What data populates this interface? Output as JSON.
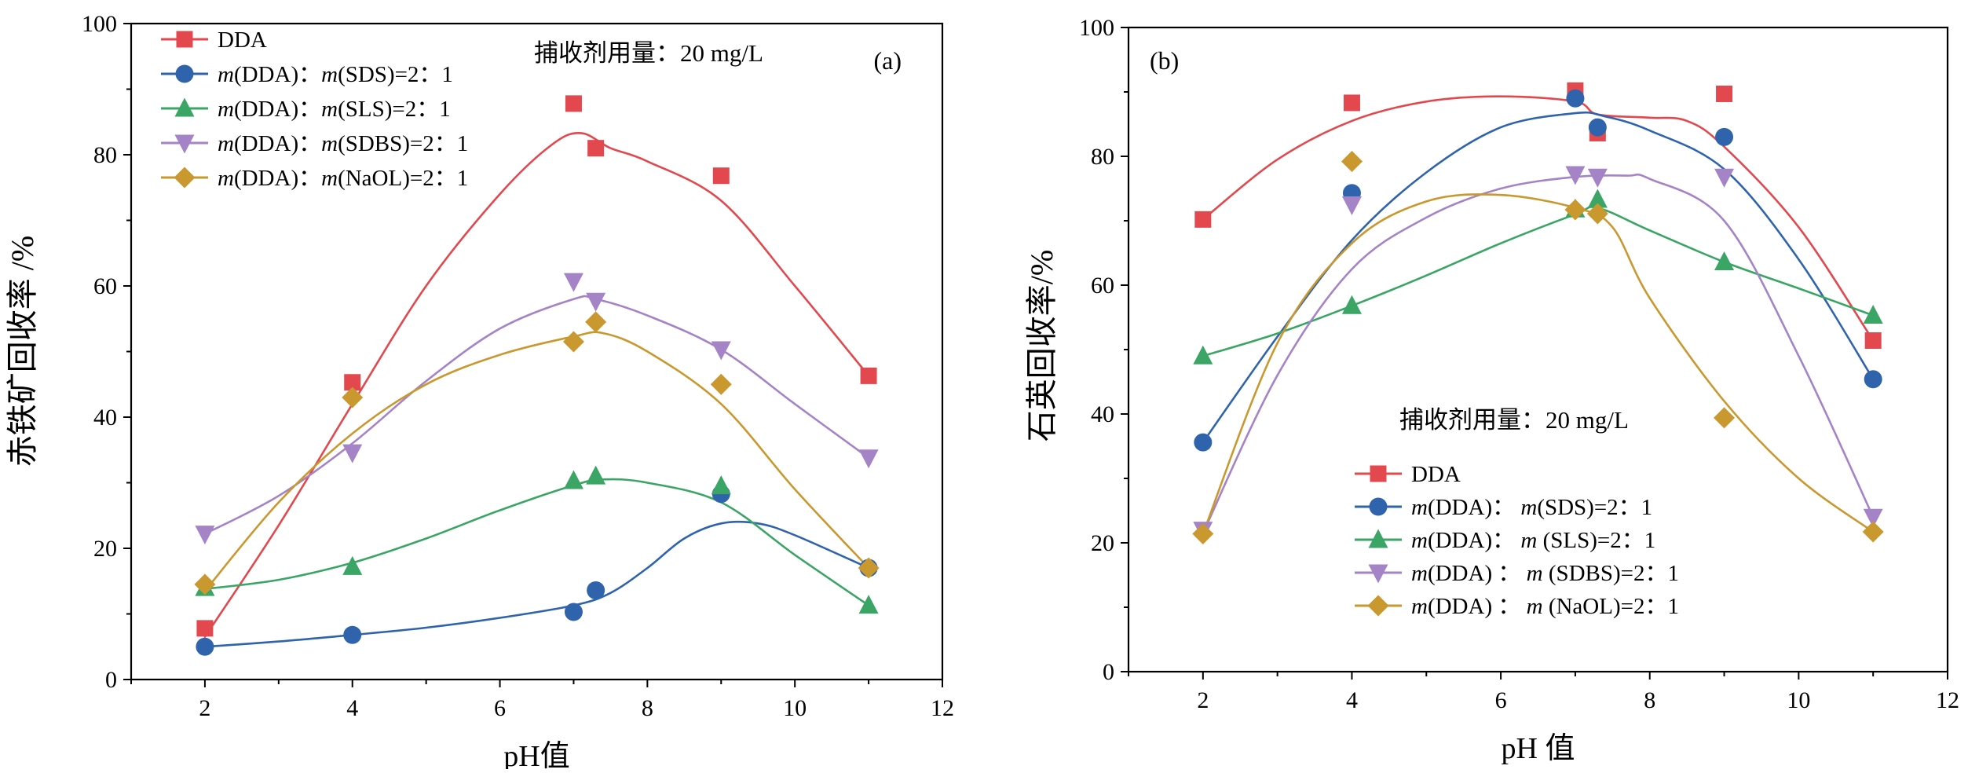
{
  "chart_data": [
    {
      "panel": "(a)",
      "type": "scatter",
      "ylabel": "赤铁矿回收率 /%",
      "xlabel": "pH值",
      "xlim": [
        1,
        12
      ],
      "ylim": [
        0,
        100
      ],
      "xticks": [
        2,
        4,
        6,
        8,
        10,
        12
      ],
      "yticks": [
        0,
        20,
        40,
        60,
        80,
        100
      ],
      "annotation": "捕收剂用量：20 mg/L",
      "legend_position": "top-left",
      "series": [
        {
          "name": "DDA",
          "color": "#e2484e",
          "marker": "square",
          "points": [
            [
              2,
              7.8
            ],
            [
              4,
              45.3
            ],
            [
              7,
              87.8
            ],
            [
              7.3,
              81.0
            ],
            [
              9,
              76.8
            ],
            [
              11,
              46.3
            ]
          ],
          "curve": [
            [
              2,
              6.5
            ],
            [
              3,
              23.5
            ],
            [
              4,
              42.0
            ],
            [
              5,
              60.0
            ],
            [
              6,
              74.0
            ],
            [
              6.7,
              81.5
            ],
            [
              7.1,
              83.3
            ],
            [
              7.5,
              81.0
            ],
            [
              8,
              79.0
            ],
            [
              9,
              73.0
            ],
            [
              10,
              60.0
            ],
            [
              11,
              46.3
            ]
          ]
        },
        {
          "name": "m(DDA)：m(SDS)=2：1",
          "color": "#2f64ad",
          "marker": "circle",
          "points": [
            [
              2,
              5.0
            ],
            [
              4,
              6.8
            ],
            [
              7,
              10.3
            ],
            [
              7.3,
              13.6
            ],
            [
              9,
              28.3
            ],
            [
              11,
              17.0
            ]
          ],
          "curve": [
            [
              2,
              5.0
            ],
            [
              3,
              5.8
            ],
            [
              4,
              6.8
            ],
            [
              5,
              7.9
            ],
            [
              6,
              9.4
            ],
            [
              7,
              11.3
            ],
            [
              7.5,
              13.2
            ],
            [
              8,
              17.0
            ],
            [
              8.5,
              21.5
            ],
            [
              9,
              23.8
            ],
            [
              9.5,
              23.8
            ],
            [
              10,
              22.0
            ],
            [
              11,
              17.0
            ]
          ]
        },
        {
          "name": "m(DDA)：m(SLS)=2：1",
          "color": "#3aa564",
          "marker": "triangle-up",
          "points": [
            [
              2,
              14.0
            ],
            [
              4,
              17.2
            ],
            [
              7,
              30.3
            ],
            [
              7.3,
              31.0
            ],
            [
              9,
              29.5
            ],
            [
              11,
              11.3
            ]
          ],
          "curve": [
            [
              2,
              13.8
            ],
            [
              3,
              15.2
            ],
            [
              4,
              17.8
            ],
            [
              5,
              21.5
            ],
            [
              6,
              25.8
            ],
            [
              7,
              29.6
            ],
            [
              7.4,
              30.5
            ],
            [
              8,
              30.0
            ],
            [
              9,
              27.0
            ],
            [
              10,
              19.0
            ],
            [
              11,
              11.3
            ]
          ]
        },
        {
          "name": "m(DDA)：m(SDBS)=2：1",
          "color": "#a583c7",
          "marker": "triangle-down",
          "points": [
            [
              2,
              22.2
            ],
            [
              4,
              34.6
            ],
            [
              7,
              60.7
            ],
            [
              7.3,
              57.7
            ],
            [
              9,
              50.3
            ],
            [
              11,
              33.8
            ]
          ],
          "curve": [
            [
              2,
              22.2
            ],
            [
              3,
              28.0
            ],
            [
              4,
              36.0
            ],
            [
              5,
              45.5
            ],
            [
              6,
              53.5
            ],
            [
              7,
              58.0
            ],
            [
              7.3,
              58.0
            ],
            [
              8,
              55.5
            ],
            [
              9,
              50.3
            ],
            [
              10,
              42.0
            ],
            [
              11,
              33.8
            ]
          ]
        },
        {
          "name": "m(DDA)：m(NaOL)=2：1",
          "color": "#c9982f",
          "marker": "diamond",
          "points": [
            [
              2,
              14.5
            ],
            [
              4,
              43.0
            ],
            [
              7,
              51.5
            ],
            [
              7.3,
              54.5
            ],
            [
              9,
              45.0
            ],
            [
              11,
              17.0
            ]
          ],
          "curve": [
            [
              2,
              13.5
            ],
            [
              3,
              27.0
            ],
            [
              4,
              37.5
            ],
            [
              5,
              45.0
            ],
            [
              6,
              49.5
            ],
            [
              7,
              52.3
            ],
            [
              7.4,
              52.8
            ],
            [
              8,
              50.0
            ],
            [
              9,
              42.0
            ],
            [
              10,
              29.0
            ],
            [
              11,
              17.0
            ]
          ]
        }
      ]
    },
    {
      "panel": "(b)",
      "type": "scatter",
      "ylabel": "石英回收率/%",
      "xlabel": "pH 值",
      "xlim": [
        1,
        12
      ],
      "ylim": [
        0,
        100
      ],
      "xticks": [
        2,
        4,
        6,
        8,
        10,
        12
      ],
      "yticks": [
        0,
        20,
        40,
        60,
        80,
        100
      ],
      "annotation": "捕收剂用量：20 mg/L",
      "legend_position": "bottom-center",
      "series": [
        {
          "name": "DDA",
          "color": "#e2484e",
          "marker": "square",
          "points": [
            [
              2,
              70.2
            ],
            [
              4,
              88.3
            ],
            [
              7,
              90.2
            ],
            [
              7.3,
              83.6
            ],
            [
              9,
              89.7
            ],
            [
              11,
              51.4
            ]
          ],
          "curve": [
            [
              2,
              70.2
            ],
            [
              3,
              79.5
            ],
            [
              4,
              85.5
            ],
            [
              5,
              88.5
            ],
            [
              6,
              89.3
            ],
            [
              7,
              88.5
            ],
            [
              7.3,
              86.5
            ],
            [
              8,
              86.0
            ],
            [
              8.5,
              85.5
            ],
            [
              9,
              81.5
            ],
            [
              10,
              69.0
            ],
            [
              11,
              51.4
            ]
          ]
        },
        {
          "name": "m(DDA)： m(SDS)=2：1",
          "color": "#2f64ad",
          "marker": "circle",
          "points": [
            [
              2,
              35.6
            ],
            [
              4,
              74.3
            ],
            [
              7,
              89.0
            ],
            [
              7.3,
              84.5
            ],
            [
              9,
              83.0
            ],
            [
              11,
              45.4
            ]
          ],
          "curve": [
            [
              2,
              35.6
            ],
            [
              3,
              52.0
            ],
            [
              4,
              67.0
            ],
            [
              5,
              77.5
            ],
            [
              6,
              84.5
            ],
            [
              7,
              86.7
            ],
            [
              7.4,
              86.2
            ],
            [
              8,
              84.0
            ],
            [
              9,
              78.0
            ],
            [
              10,
              64.0
            ],
            [
              11,
              45.4
            ]
          ]
        },
        {
          "name": "m(DDA)： m (SLS)=2：1",
          "color": "#3aa564",
          "marker": "triangle-up",
          "points": [
            [
              2,
              49.0
            ],
            [
              4,
              56.8
            ],
            [
              7,
              71.8
            ],
            [
              7.3,
              73.3
            ],
            [
              9,
              63.6
            ],
            [
              11,
              55.3
            ]
          ],
          "curve": [
            [
              2,
              49.0
            ],
            [
              3,
              52.5
            ],
            [
              4,
              56.8
            ],
            [
              5,
              61.5
            ],
            [
              6,
              66.5
            ],
            [
              7,
              71.0
            ],
            [
              7.3,
              72.0
            ],
            [
              8,
              68.5
            ],
            [
              9,
              63.6
            ],
            [
              10,
              59.5
            ],
            [
              11,
              55.3
            ]
          ]
        },
        {
          "name": "m(DDA) ： m (SDBS)=2：1",
          "color": "#a583c7",
          "marker": "triangle-down",
          "points": [
            [
              2,
              22.0
            ],
            [
              4,
              72.5
            ],
            [
              7,
              77.2
            ],
            [
              7.3,
              76.8
            ],
            [
              9,
              76.8
            ],
            [
              11,
              24.0
            ]
          ],
          "curve": [
            [
              2,
              21.5
            ],
            [
              3,
              46.0
            ],
            [
              4,
              62.5
            ],
            [
              5,
              70.5
            ],
            [
              6,
              75.0
            ],
            [
              7,
              76.8
            ],
            [
              7.7,
              77.0
            ],
            [
              8,
              76.5
            ],
            [
              9,
              70.0
            ],
            [
              10,
              49.0
            ],
            [
              11,
              24.0
            ]
          ]
        },
        {
          "name": "m(DDA) ： m (NaOL)=2：1",
          "color": "#c9982f",
          "marker": "diamond",
          "points": [
            [
              2,
              21.4
            ],
            [
              4,
              79.2
            ],
            [
              7,
              71.7
            ],
            [
              7.3,
              71.1
            ],
            [
              9,
              39.4
            ],
            [
              11,
              21.7
            ]
          ],
          "curve": [
            [
              2,
              21.4
            ],
            [
              3,
              51.0
            ],
            [
              4,
              66.5
            ],
            [
              5,
              73.0
            ],
            [
              6,
              74.0
            ],
            [
              7,
              72.0
            ],
            [
              7.5,
              69.0
            ],
            [
              8,
              58.0
            ],
            [
              9,
              42.0
            ],
            [
              10,
              30.0
            ],
            [
              11,
              21.7
            ]
          ]
        }
      ]
    }
  ]
}
